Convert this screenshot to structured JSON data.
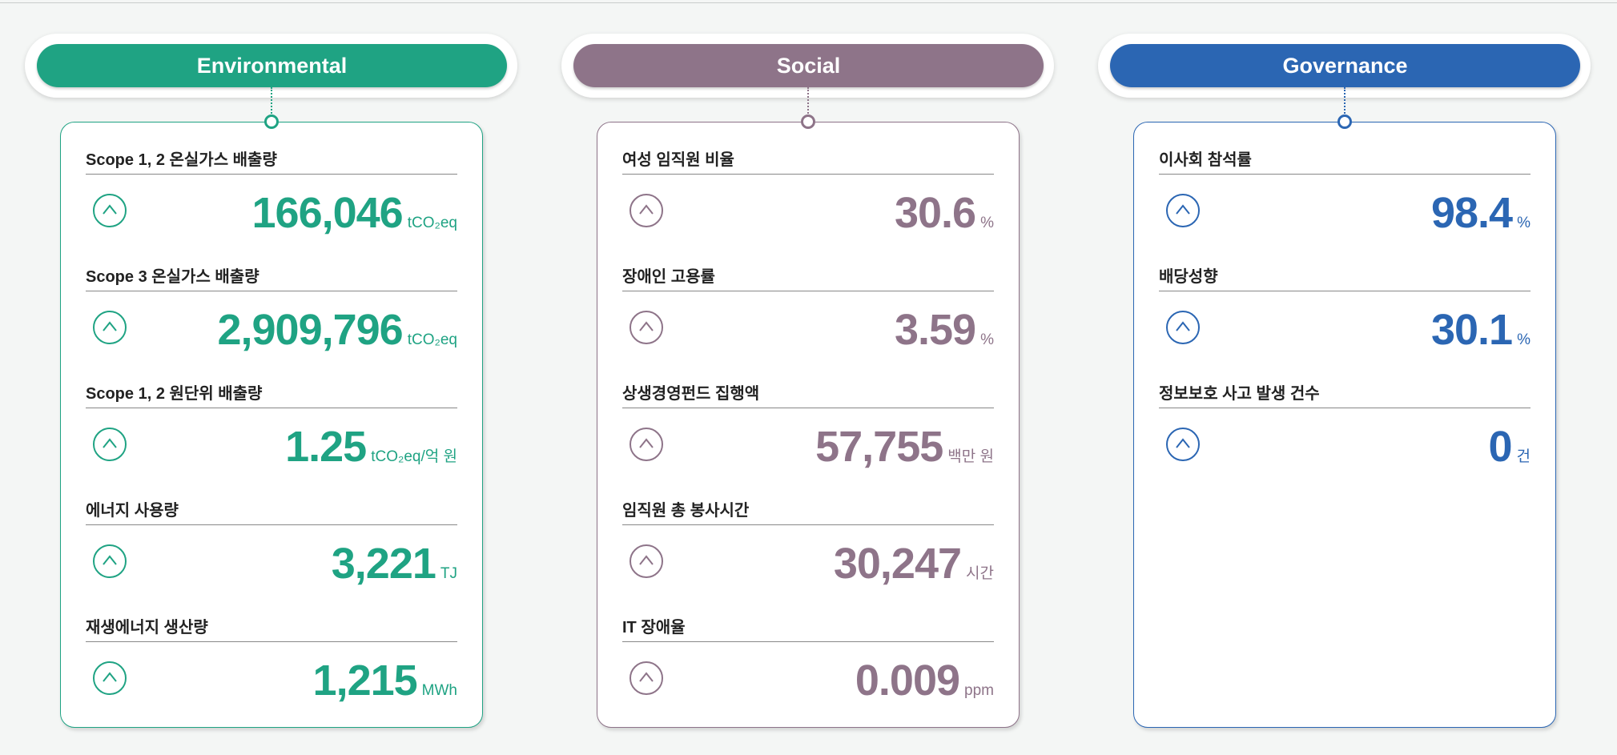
{
  "panels": [
    {
      "title": "Environmental",
      "color": "#1fa383",
      "items": [
        {
          "label": "Scope 1, 2 온실가스 배출량",
          "value": "166,046",
          "unit": "tCO₂eq"
        },
        {
          "label": "Scope 3 온실가스 배출량",
          "value": "2,909,796",
          "unit": "tCO₂eq"
        },
        {
          "label": "Scope 1, 2 원단위 배출량",
          "value": "1.25",
          "unit": "tCO₂eq/억 원"
        },
        {
          "label": "에너지 사용량",
          "value": "3,221",
          "unit": "TJ"
        },
        {
          "label": "재생에너지 생산량",
          "value": "1,215",
          "unit": "MWh"
        }
      ]
    },
    {
      "title": "Social",
      "color": "#8e7489",
      "items": [
        {
          "label": "여성 임직원 비율",
          "value": "30.6",
          "unit": "%"
        },
        {
          "label": "장애인 고용률",
          "value": "3.59",
          "unit": "%"
        },
        {
          "label": "상생경영펀드 집행액",
          "value": "57,755",
          "unit": "백만 원"
        },
        {
          "label": "임직원 총 봉사시간",
          "value": "30,247",
          "unit": "시간"
        },
        {
          "label": "IT 장애율",
          "value": "0.009",
          "unit": "ppm"
        }
      ]
    },
    {
      "title": "Governance",
      "color": "#2b66b3",
      "items": [
        {
          "label": "이사회 참석률",
          "value": "98.4",
          "unit": "%"
        },
        {
          "label": "배당성향",
          "value": "30.1",
          "unit": "%"
        },
        {
          "label": "정보보호 사고 발생 건수",
          "value": "0",
          "unit": "건"
        }
      ]
    }
  ]
}
